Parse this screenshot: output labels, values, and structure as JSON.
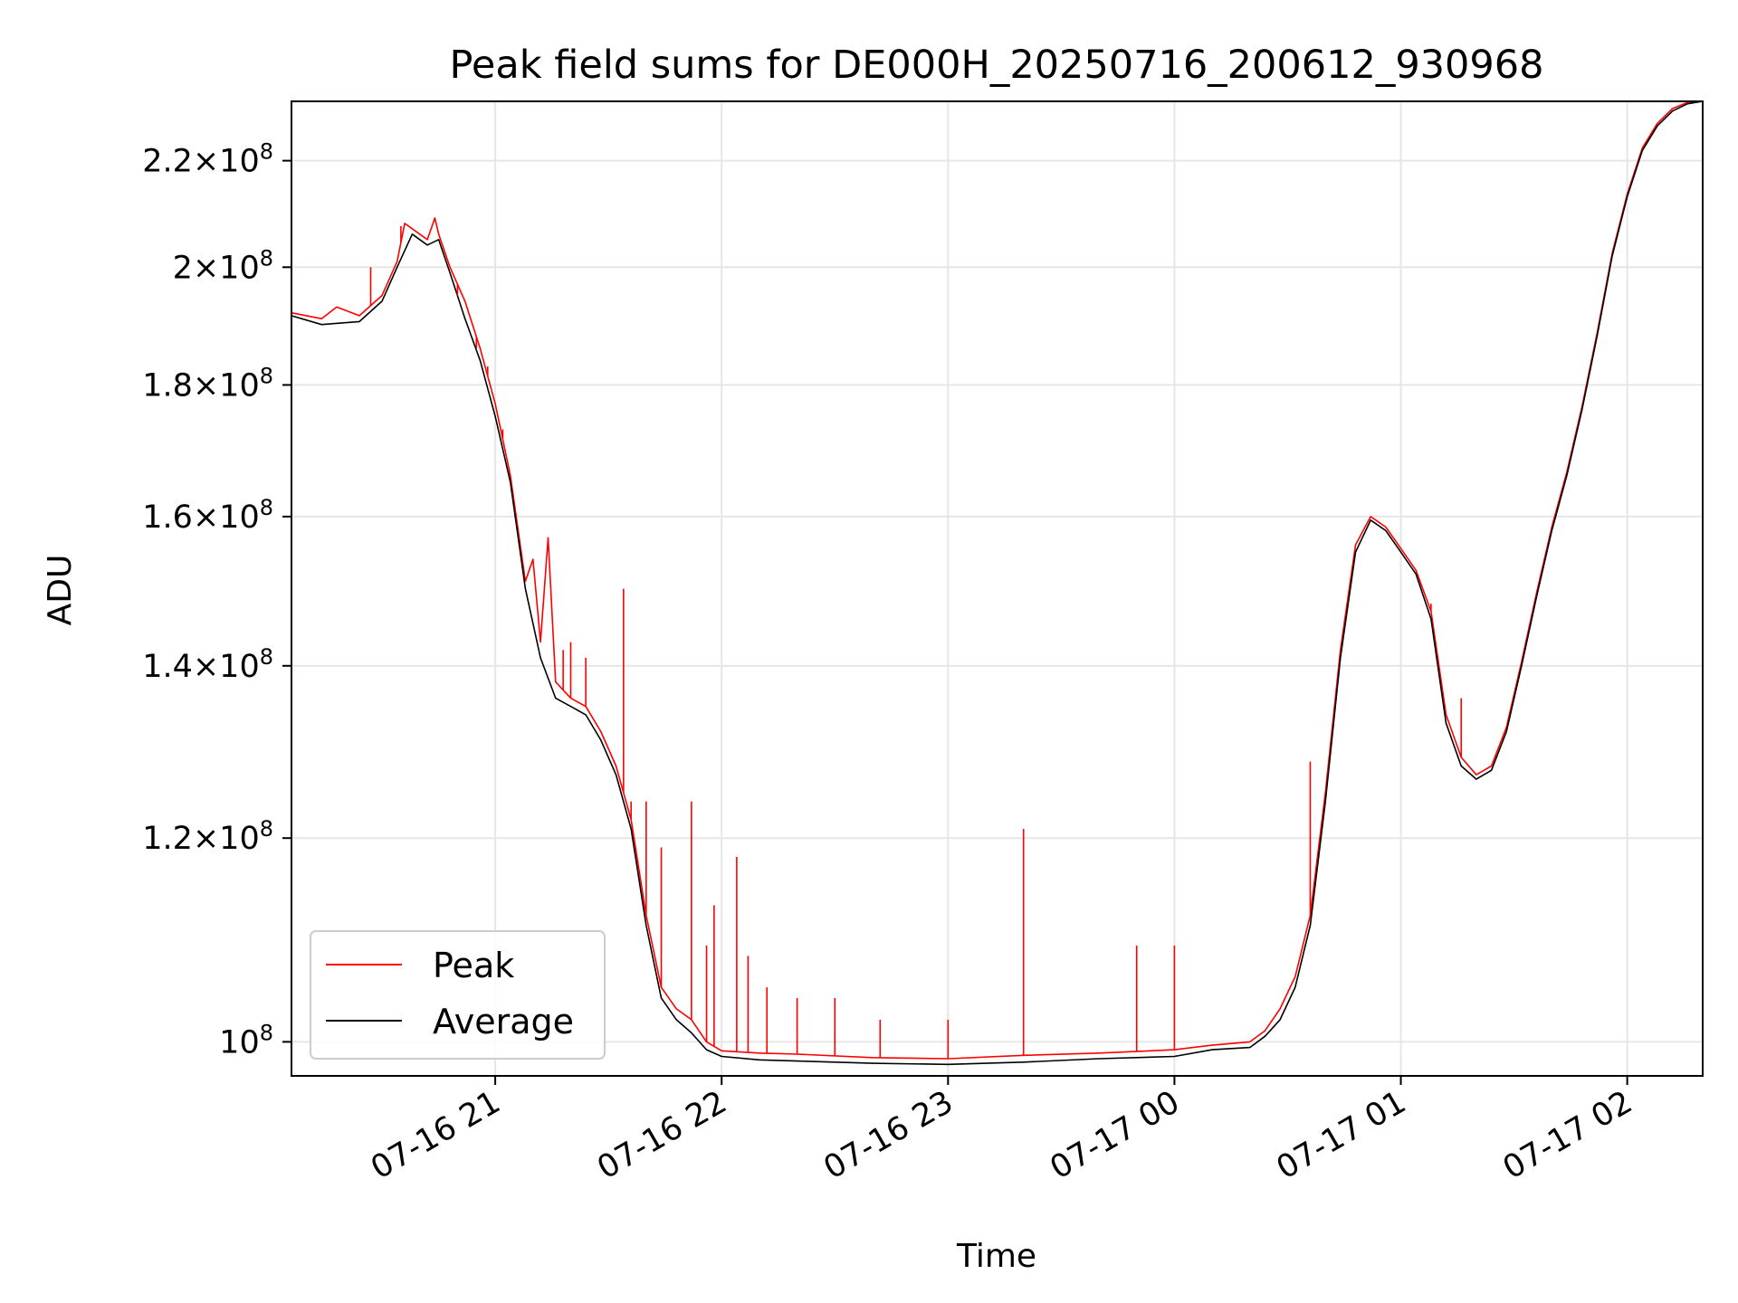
{
  "chart_data": {
    "type": "line",
    "title": "Peak field sums for DE000H_20250716_200612_930968",
    "xlabel": "Time",
    "ylabel": "ADU",
    "y_scale": "log",
    "grid": true,
    "legend_position": "lower-left",
    "xlim": [
      "07-16 20:06",
      "07-17 02:20"
    ],
    "ylim": [
      97000000,
      232000000
    ],
    "x_ticks": [
      "07-16 21",
      "07-16 22",
      "07-16 23",
      "07-17 00",
      "07-17 01",
      "07-17 02"
    ],
    "y_ticks": [
      {
        "value": 100000000,
        "mantissa": "",
        "exponent": "8"
      },
      {
        "value": 120000000,
        "mantissa": "1.2",
        "exponent": "8"
      },
      {
        "value": 140000000,
        "mantissa": "1.4",
        "exponent": "8"
      },
      {
        "value": 160000000,
        "mantissa": "1.6",
        "exponent": "8"
      },
      {
        "value": 180000000,
        "mantissa": "1.8",
        "exponent": "8"
      },
      {
        "value": 200000000,
        "mantissa": "2",
        "exponent": "8"
      },
      {
        "value": 220000000,
        "mantissa": "2.2",
        "exponent": "8"
      }
    ],
    "series": [
      {
        "name": "Average",
        "color": "#000000",
        "points": [
          [
            "07-16 20:06",
            191500000
          ],
          [
            "07-16 20:14",
            190000000
          ],
          [
            "07-16 20:24",
            190500000
          ],
          [
            "07-16 20:30",
            194000000
          ],
          [
            "07-16 20:34",
            200000000
          ],
          [
            "07-16 20:38",
            206000000
          ],
          [
            "07-16 20:42",
            204000000
          ],
          [
            "07-16 20:45",
            205000000
          ],
          [
            "07-16 20:48",
            199000000
          ],
          [
            "07-16 20:52",
            191000000
          ],
          [
            "07-16 20:56",
            184000000
          ],
          [
            "07-16 21:00",
            175000000
          ],
          [
            "07-16 21:04",
            165000000
          ],
          [
            "07-16 21:08",
            150000000
          ],
          [
            "07-16 21:12",
            141000000
          ],
          [
            "07-16 21:16",
            136000000
          ],
          [
            "07-16 21:20",
            135000000
          ],
          [
            "07-16 21:24",
            134000000
          ],
          [
            "07-16 21:28",
            131000000
          ],
          [
            "07-16 21:32",
            127000000
          ],
          [
            "07-16 21:36",
            121000000
          ],
          [
            "07-16 21:40",
            111000000
          ],
          [
            "07-16 21:44",
            104000000
          ],
          [
            "07-16 21:48",
            102000000
          ],
          [
            "07-16 21:52",
            100800000
          ],
          [
            "07-16 21:56",
            99300000
          ],
          [
            "07-16 22:00",
            98700000
          ],
          [
            "07-16 22:10",
            98400000
          ],
          [
            "07-16 22:20",
            98300000
          ],
          [
            "07-16 22:40",
            98100000
          ],
          [
            "07-16 23:00",
            98000000
          ],
          [
            "07-16 23:20",
            98200000
          ],
          [
            "07-16 23:40",
            98500000
          ],
          [
            "07-17 00:00",
            98700000
          ],
          [
            "07-17 00:10",
            99300000
          ],
          [
            "07-17 00:20",
            99500000
          ],
          [
            "07-17 00:24",
            100500000
          ],
          [
            "07-17 00:28",
            102000000
          ],
          [
            "07-17 00:32",
            105000000
          ],
          [
            "07-17 00:36",
            111000000
          ],
          [
            "07-17 00:40",
            124000000
          ],
          [
            "07-17 00:44",
            141000000
          ],
          [
            "07-17 00:48",
            155000000
          ],
          [
            "07-17 00:52",
            159500000
          ],
          [
            "07-17 00:56",
            158000000
          ],
          [
            "07-17 01:00",
            155000000
          ],
          [
            "07-17 01:04",
            152000000
          ],
          [
            "07-17 01:08",
            146000000
          ],
          [
            "07-17 01:12",
            133000000
          ],
          [
            "07-17 01:16",
            128000000
          ],
          [
            "07-17 01:20",
            126500000
          ],
          [
            "07-17 01:24",
            127500000
          ],
          [
            "07-17 01:28",
            132000000
          ],
          [
            "07-17 01:32",
            140000000
          ],
          [
            "07-17 01:36",
            149000000
          ],
          [
            "07-17 01:40",
            158000000
          ],
          [
            "07-17 01:44",
            166000000
          ],
          [
            "07-17 01:48",
            176000000
          ],
          [
            "07-17 01:52",
            188000000
          ],
          [
            "07-17 01:56",
            202000000
          ],
          [
            "07-17 02:00",
            213000000
          ],
          [
            "07-17 02:04",
            222000000
          ],
          [
            "07-17 02:08",
            227000000
          ],
          [
            "07-17 02:12",
            230000000
          ],
          [
            "07-17 02:16",
            231500000
          ],
          [
            "07-17 02:20",
            232000000
          ]
        ]
      },
      {
        "name": "Peak",
        "color": "#ff0000",
        "points": [
          [
            "07-16 20:06",
            192000000
          ],
          [
            "07-16 20:14",
            191000000
          ],
          [
            "07-16 20:18",
            193000000
          ],
          [
            "07-16 20:24",
            191500000
          ],
          [
            "07-16 20:30",
            195000000
          ],
          [
            "07-16 20:34",
            201000000
          ],
          [
            "07-16 20:36",
            208000000
          ],
          [
            "07-16 20:38",
            207000000
          ],
          [
            "07-16 20:42",
            205000000
          ],
          [
            "07-16 20:44",
            209000000
          ],
          [
            "07-16 20:45",
            206000000
          ],
          [
            "07-16 20:48",
            200000000
          ],
          [
            "07-16 20:52",
            194000000
          ],
          [
            "07-16 20:56",
            186000000
          ],
          [
            "07-16 21:00",
            177000000
          ],
          [
            "07-16 21:04",
            166000000
          ],
          [
            "07-16 21:08",
            151000000
          ],
          [
            "07-16 21:10",
            154000000
          ],
          [
            "07-16 21:12",
            143000000
          ],
          [
            "07-16 21:14",
            157000000
          ],
          [
            "07-16 21:16",
            138000000
          ],
          [
            "07-16 21:20",
            136000000
          ],
          [
            "07-16 21:24",
            135000000
          ],
          [
            "07-16 21:28",
            132000000
          ],
          [
            "07-16 21:32",
            128000000
          ],
          [
            "07-16 21:36",
            122000000
          ],
          [
            "07-16 21:40",
            112000000
          ],
          [
            "07-16 21:44",
            105000000
          ],
          [
            "07-16 21:48",
            103000000
          ],
          [
            "07-16 21:52",
            102000000
          ],
          [
            "07-16 21:56",
            100000000
          ],
          [
            "07-16 22:00",
            99200000
          ],
          [
            "07-16 22:10",
            99000000
          ],
          [
            "07-16 22:20",
            98900000
          ],
          [
            "07-16 22:40",
            98600000
          ],
          [
            "07-16 23:00",
            98500000
          ],
          [
            "07-16 23:20",
            98800000
          ],
          [
            "07-16 23:40",
            99000000
          ],
          [
            "07-17 00:00",
            99300000
          ],
          [
            "07-17 00:10",
            99700000
          ],
          [
            "07-17 00:20",
            100000000
          ],
          [
            "07-17 00:24",
            101000000
          ],
          [
            "07-17 00:28",
            103000000
          ],
          [
            "07-17 00:32",
            106000000
          ],
          [
            "07-17 00:36",
            112000000
          ],
          [
            "07-17 00:40",
            125000000
          ],
          [
            "07-17 00:44",
            142000000
          ],
          [
            "07-17 00:48",
            156000000
          ],
          [
            "07-17 00:52",
            160000000
          ],
          [
            "07-17 00:56",
            158500000
          ],
          [
            "07-17 01:00",
            155500000
          ],
          [
            "07-17 01:04",
            152500000
          ],
          [
            "07-17 01:08",
            147000000
          ],
          [
            "07-17 01:12",
            134000000
          ],
          [
            "07-17 01:16",
            129000000
          ],
          [
            "07-17 01:20",
            127000000
          ],
          [
            "07-17 01:24",
            128000000
          ],
          [
            "07-17 01:28",
            132500000
          ],
          [
            "07-17 01:32",
            140500000
          ],
          [
            "07-17 01:36",
            149500000
          ],
          [
            "07-17 01:40",
            158500000
          ],
          [
            "07-17 01:44",
            166500000
          ],
          [
            "07-17 01:48",
            176500000
          ],
          [
            "07-17 01:52",
            188500000
          ],
          [
            "07-17 01:56",
            202500000
          ],
          [
            "07-17 02:00",
            213500000
          ],
          [
            "07-17 02:04",
            222500000
          ],
          [
            "07-17 02:08",
            227500000
          ],
          [
            "07-17 02:12",
            230500000
          ],
          [
            "07-17 02:16",
            231800000
          ],
          [
            "07-17 02:20",
            232000000
          ]
        ],
        "spikes": [
          [
            "07-16 20:27",
            200000000
          ],
          [
            "07-16 20:35",
            207500000
          ],
          [
            "07-16 20:50",
            195000000
          ],
          [
            "07-16 20:55",
            186000000
          ],
          [
            "07-16 20:58",
            183000000
          ],
          [
            "07-16 21:02",
            173000000
          ],
          [
            "07-16 21:18",
            142000000
          ],
          [
            "07-16 21:20",
            143000000
          ],
          [
            "07-16 21:24",
            141000000
          ],
          [
            "07-16 21:34",
            150000000
          ],
          [
            "07-16 21:36",
            124000000
          ],
          [
            "07-16 21:40",
            124000000
          ],
          [
            "07-16 21:44",
            119000000
          ],
          [
            "07-16 21:52",
            124000000
          ],
          [
            "07-16 21:56",
            109000000
          ],
          [
            "07-16 21:58",
            113000000
          ],
          [
            "07-16 22:04",
            118000000
          ],
          [
            "07-16 22:07",
            108000000
          ],
          [
            "07-16 22:12",
            105000000
          ],
          [
            "07-16 22:20",
            104000000
          ],
          [
            "07-16 22:30",
            104000000
          ],
          [
            "07-16 22:42",
            102000000
          ],
          [
            "07-16 23:00",
            102000000
          ],
          [
            "07-16 23:20",
            121000000
          ],
          [
            "07-16 23:50",
            109000000
          ],
          [
            "07-17 00:00",
            109000000
          ],
          [
            "07-17 00:36",
            128500000
          ],
          [
            "07-17 01:08",
            148000000
          ],
          [
            "07-17 01:16",
            136000000
          ]
        ]
      }
    ]
  }
}
